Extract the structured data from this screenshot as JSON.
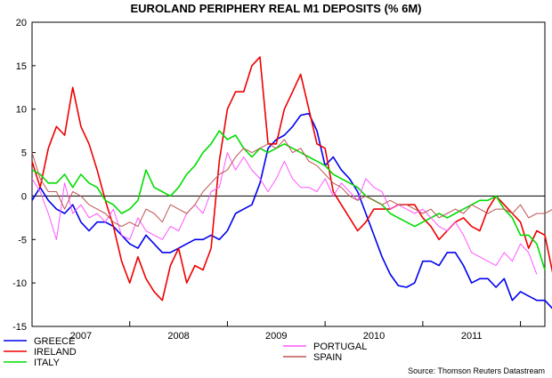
{
  "chart_data": {
    "type": "line",
    "title": "EUROLAND PERIPHERY REAL M1 DEPOSITS (% 6M)",
    "source": "Source: Thomson Reuters Datastream",
    "ylim": [
      -15,
      20
    ],
    "yticks": [
      "20",
      "15",
      "10",
      "5",
      "0",
      "-5",
      "-10",
      "-15"
    ],
    "ytick_values": [
      20,
      15,
      10,
      5,
      0,
      -5,
      -10,
      -15
    ],
    "xlim": [
      2006.5,
      2011.75
    ],
    "year_labels": [
      {
        "label": "2007",
        "center": 2007.0
      },
      {
        "label": "2008",
        "center": 2008.0
      },
      {
        "label": "2009",
        "center": 2009.0
      },
      {
        "label": "2010",
        "center": 2010.0
      },
      {
        "label": "2011",
        "center": 2011.0
      }
    ],
    "year_boundaries": [
      2006.5,
      2007.5,
      2008.5,
      2009.5,
      2010.5,
      2011.5
    ],
    "x_start": 2006.5,
    "x_step": 0.0833333,
    "series": [
      {
        "name": "GREECE",
        "color": "#0000ee",
        "width": 1.6,
        "values": [
          -0.5,
          1.0,
          -0.5,
          -1.5,
          -2.0,
          -1.0,
          -3.0,
          -4.0,
          -3.0,
          -3.0,
          -3.5,
          -4.5,
          -5.5,
          -6.0,
          -4.5,
          -5.5,
          -6.5,
          -6.5,
          -6.0,
          -5.5,
          -5.0,
          -5.0,
          -4.5,
          -5.0,
          -4.0,
          -2.0,
          -1.5,
          -1.0,
          1.5,
          5.5,
          6.5,
          7.0,
          8.0,
          9.3,
          9.5,
          7.5,
          3.5,
          4.5,
          3.0,
          2.0,
          0.5,
          -2.0,
          -4.5,
          -7.0,
          -9.0,
          -10.3,
          -10.5,
          -10.0,
          -7.5,
          -7.5,
          -8.0,
          -6.5,
          -6.5,
          -8.0,
          -10.0,
          -9.5,
          -9.5,
          -10.5,
          -9.5,
          -12.0,
          -11.0,
          -11.5,
          -12.0,
          -12.0,
          -13.0
        ]
      },
      {
        "name": "IRELAND",
        "color": "#ee0000",
        "width": 1.6,
        "values": [
          4.0,
          1.0,
          5.5,
          8.0,
          7.0,
          12.5,
          8.0,
          6.0,
          3.0,
          -0.5,
          -3.5,
          -7.5,
          -10.0,
          -7.0,
          -9.5,
          -11.0,
          -12.0,
          -8.0,
          -6.0,
          -10.0,
          -8.0,
          -8.5,
          -6.0,
          4.0,
          10.0,
          12.0,
          12.0,
          15.0,
          16.0,
          6.0,
          6.0,
          10.0,
          12.0,
          14.0,
          10.0,
          6.0,
          5.5,
          0.5,
          -1.0,
          -2.5,
          -4.0,
          -3.0,
          -1.5,
          -1.5,
          -1.5,
          -1.0,
          -1.0,
          -1.0,
          -2.5,
          -3.5,
          -5.0,
          -4.0,
          -3.0,
          -2.5,
          -3.5,
          -4.0,
          -1.5,
          0.0,
          -1.0,
          -2.0,
          -3.0,
          -6.0,
          -4.0,
          -4.5,
          -9.0
        ]
      },
      {
        "name": "ITALY",
        "color": "#00dd00",
        "width": 1.6,
        "values": [
          3.0,
          2.5,
          1.5,
          1.5,
          2.5,
          1.0,
          2.5,
          1.5,
          1.0,
          -0.5,
          -1.0,
          -2.0,
          -1.5,
          -0.5,
          3.0,
          1.0,
          0.5,
          0.0,
          1.0,
          2.5,
          3.5,
          5.0,
          6.0,
          7.5,
          6.5,
          7.0,
          5.5,
          4.5,
          5.5,
          5.0,
          5.5,
          6.0,
          5.5,
          5.0,
          4.5,
          4.0,
          3.5,
          2.5,
          2.0,
          1.5,
          1.0,
          0.0,
          -0.5,
          -1.0,
          -2.0,
          -2.5,
          -3.0,
          -3.5,
          -3.0,
          -2.5,
          -2.0,
          -2.5,
          -2.0,
          -1.5,
          -1.0,
          -0.5,
          -0.5,
          0.0,
          -1.5,
          -2.5,
          -4.5,
          -4.5,
          -5.5,
          -8.5
        ]
      },
      {
        "name": "PORTUGAL",
        "color": "#ff55ff",
        "width": 1.0,
        "values": [
          2.0,
          0.5,
          -2.0,
          -5.0,
          1.5,
          -2.0,
          -1.0,
          -2.5,
          -2.0,
          -3.0,
          -1.5,
          -4.5,
          -5.0,
          -2.5,
          -4.0,
          -4.5,
          -5.0,
          -3.5,
          -4.0,
          -2.0,
          -1.0,
          -2.0,
          0.5,
          1.0,
          5.0,
          3.0,
          4.5,
          3.0,
          2.0,
          0.5,
          2.0,
          4.0,
          2.0,
          1.0,
          1.0,
          0.5,
          2.0,
          0.0,
          1.5,
          0.5,
          -0.5,
          2.0,
          1.0,
          0.5,
          -1.5,
          -1.0,
          -1.5,
          -2.0,
          -1.5,
          -2.5,
          -3.5,
          -4.0,
          -3.0,
          -4.5,
          -6.5,
          -7.0,
          -7.5,
          -8.0,
          -6.5,
          -7.5,
          -5.5,
          -6.5,
          -9.0
        ]
      },
      {
        "name": "SPAIN",
        "color": "#bb5555",
        "width": 1.0,
        "values": [
          5.0,
          2.0,
          0.5,
          0.5,
          -1.5,
          0.5,
          0.0,
          -1.0,
          -1.5,
          -2.0,
          -3.0,
          -3.5,
          -3.0,
          -3.5,
          -1.5,
          -2.0,
          -3.0,
          -1.0,
          -1.5,
          -2.0,
          -1.0,
          0.5,
          1.5,
          2.5,
          3.0,
          4.5,
          5.5,
          5.0,
          5.5,
          6.0,
          5.5,
          6.5,
          5.0,
          5.5,
          4.0,
          3.5,
          2.5,
          1.5,
          1.0,
          0.0,
          -0.5,
          0.0,
          -0.5,
          -1.0,
          -0.5,
          -1.0,
          -1.0,
          -1.5,
          -2.0,
          -1.5,
          -2.5,
          -2.0,
          -1.5,
          -2.0,
          -1.0,
          -1.5,
          -2.0,
          -1.5,
          -1.5,
          -2.0,
          -1.0,
          -2.5,
          -2.0,
          -2.0,
          -1.5
        ]
      }
    ],
    "zero_line": true,
    "legend": [
      {
        "label": "GREECE",
        "color": "#0000ee",
        "column": "left"
      },
      {
        "label": "IRELAND",
        "color": "#ee0000",
        "column": "left"
      },
      {
        "label": "ITALY",
        "color": "#00dd00",
        "column": "left"
      },
      {
        "label": "PORTUGAL",
        "color": "#ff55ff",
        "column": "right"
      },
      {
        "label": "SPAIN",
        "color": "#bb5555",
        "column": "right"
      }
    ]
  }
}
